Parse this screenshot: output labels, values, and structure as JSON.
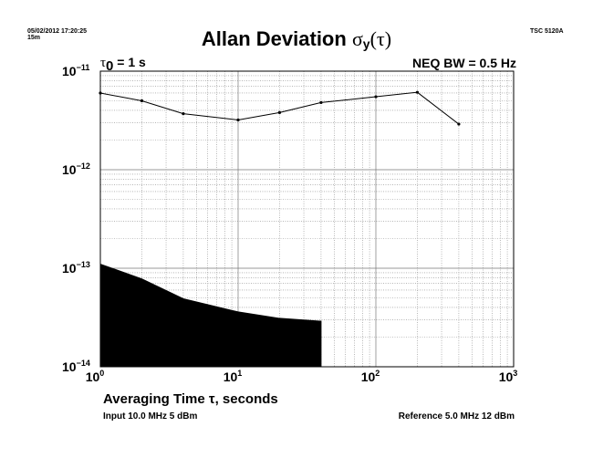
{
  "header": {
    "timestamp": "05/02/2012 17:20:25",
    "duration": "15m",
    "model": "TSC 5120A",
    "title_main": "Allan Deviation ",
    "title_sigma": "σ",
    "title_sub": "y",
    "title_arg": "(τ)",
    "tau0_symbol": "τ",
    "tau0_sub": "0",
    "tau0_value": " = 1 s",
    "bandwidth": "NEQ BW = 0.5 Hz"
  },
  "footer": {
    "input": "Input 10.0 MHz 5 dBm",
    "reference": "Reference 5.0 MHz 12 dBm"
  },
  "chart_data": {
    "type": "line",
    "title": "Allan Deviation σy(τ)",
    "xlabel": "Averaging Time τ, seconds",
    "ylabel": "",
    "x_scale": "log",
    "y_scale": "log",
    "xlim": [
      1,
      1000
    ],
    "ylim": [
      1e-14,
      1e-11
    ],
    "grid": true,
    "x_ticks": [
      {
        "base": "10",
        "exp": "0"
      },
      {
        "base": "10",
        "exp": "1"
      },
      {
        "base": "10",
        "exp": "2"
      },
      {
        "base": "10",
        "exp": "3"
      }
    ],
    "y_ticks": [
      {
        "base": "10",
        "exp": "−11"
      },
      {
        "base": "10",
        "exp": "−12"
      },
      {
        "base": "10",
        "exp": "−13"
      },
      {
        "base": "10",
        "exp": "−14"
      }
    ],
    "series": [
      {
        "type": "line",
        "x": [
          1,
          2,
          4,
          10,
          20,
          40,
          100,
          200,
          400
        ],
        "y": [
          6e-12,
          5e-12,
          3.7e-12,
          3.2e-12,
          3.8e-12,
          4.8e-12,
          5.5e-12,
          6.1e-12,
          2.9e-12
        ]
      },
      {
        "type": "area",
        "x": [
          1,
          2,
          4,
          10,
          20,
          40
        ],
        "y": [
          1.1e-13,
          7.8e-14,
          4.9e-14,
          3.6e-14,
          3.1e-14,
          2.9e-14
        ]
      }
    ]
  }
}
